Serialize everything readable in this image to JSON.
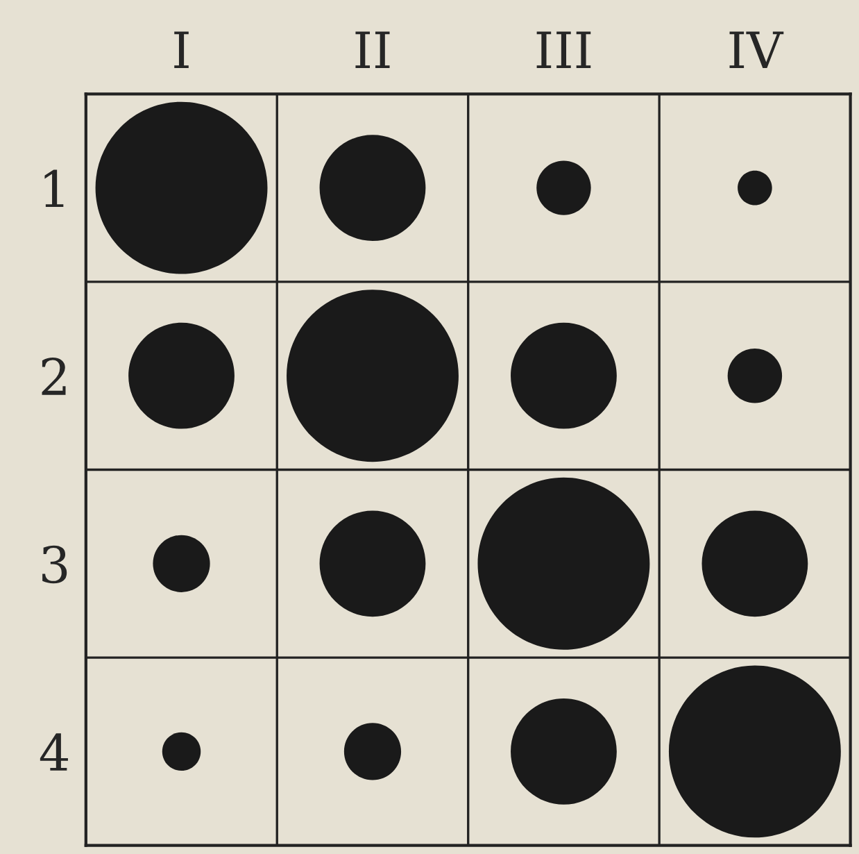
{
  "chart_data": {
    "type": "bubble",
    "categories": [
      "I",
      "II",
      "III",
      "IV"
    ],
    "ylim": [
      4.5,
      0.5
    ],
    "yticks": [
      1,
      2,
      3,
      4
    ],
    "grid": true,
    "series": [
      {
        "color": "#1a1a1a",
        "values": [
          1,
          1,
          1,
          1
        ],
        "sizes": [
          1,
          0.38,
          0.1,
          0.04
        ]
      },
      {
        "color": "#1a1a1a",
        "values": [
          2,
          2,
          2,
          2
        ],
        "sizes": [
          0.38,
          1,
          0.38,
          0.1
        ]
      },
      {
        "color": "#1a1a1a",
        "values": [
          3,
          3,
          3,
          3
        ],
        "sizes": [
          0.11,
          0.38,
          1,
          0.38
        ]
      },
      {
        "color": "#1a1a1a",
        "values": [
          4,
          4,
          4,
          4
        ],
        "sizes": [
          0.05,
          0.11,
          0.38,
          1
        ]
      }
    ]
  }
}
